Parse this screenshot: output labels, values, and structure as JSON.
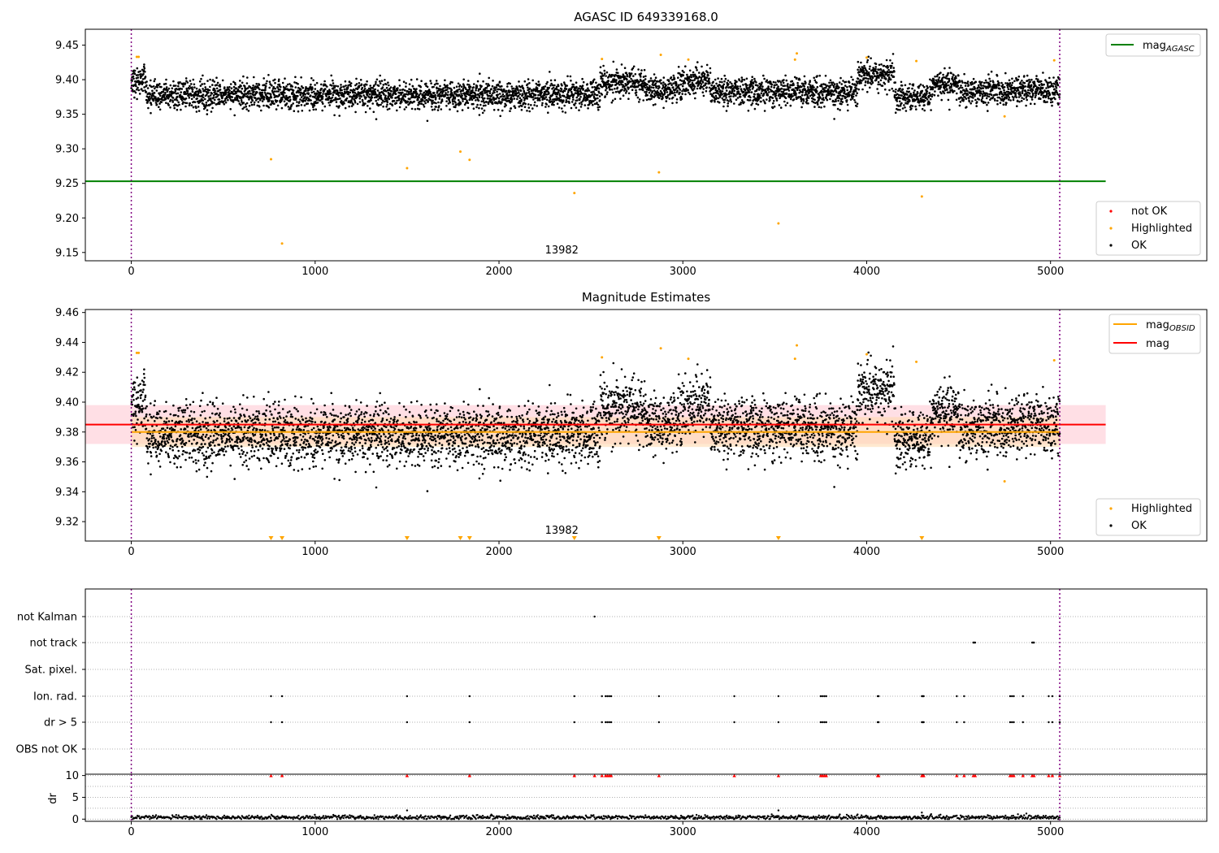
{
  "figure": {
    "title_top": "AGASC ID 649339168.0",
    "title_mid": "Magnitude Estimates",
    "obsid_label": "13982",
    "colors": {
      "ok": "#000000",
      "highlighted": "#ffa500",
      "not_ok": "#ff0000",
      "mag_agasc": "#008000",
      "mag_obsid": "#ffa500",
      "mag": "#ff0000",
      "obs_boundary": "#800080",
      "band_mag": "#ffc0cb",
      "band_obsid": "#ffdab0"
    }
  },
  "chart_data": [
    {
      "id": "top",
      "type": "scatter",
      "title": "AGASC ID 649339168.0",
      "xlim": [
        -250,
        5850
      ],
      "ylim": [
        9.138,
        9.473
      ],
      "xticks": [
        0,
        1000,
        2000,
        3000,
        4000,
        5000
      ],
      "yticks": [
        9.15,
        9.2,
        9.25,
        9.3,
        9.35,
        9.4,
        9.45
      ],
      "ytick_labels": [
        "9.15",
        "9.20",
        "9.25",
        "9.30",
        "9.35",
        "9.40",
        "9.45"
      ],
      "mag_agasc": 9.253,
      "mag_agasc_xrange": [
        -250,
        5300
      ],
      "obs_boundaries": [
        0,
        5050
      ],
      "obsid_label_x": 2250,
      "legend_lines": [
        {
          "label": "mag",
          "sub": "AGASC",
          "color": "#008000"
        }
      ],
      "legend_points": [
        {
          "label": "not OK",
          "color": "#ff0000"
        },
        {
          "label": "Highlighted",
          "color": "#ffa500"
        },
        {
          "label": "OK",
          "color": "#000000"
        }
      ],
      "series": [
        {
          "name": "OK",
          "color": "#000000",
          "n_points": 5050,
          "x_range": [
            0,
            5050
          ],
          "baseline": 9.38,
          "scatter": 0.01,
          "segments": [
            {
              "x": [
                0,
                80
              ],
              "level": 9.397
            },
            {
              "x": [
                80,
                2550
              ],
              "level": 9.378
            },
            {
              "x": [
                2550,
                2800
              ],
              "level": 9.396
            },
            {
              "x": [
                2800,
                3000
              ],
              "level": 9.386
            },
            {
              "x": [
                3000,
                3150
              ],
              "level": 9.398
            },
            {
              "x": [
                3150,
                3700
              ],
              "level": 9.383
            },
            {
              "x": [
                3700,
                3950
              ],
              "level": 9.381
            },
            {
              "x": [
                3950,
                4150
              ],
              "level": 9.408
            },
            {
              "x": [
                4150,
                4350
              ],
              "level": 9.375
            },
            {
              "x": [
                4350,
                4500
              ],
              "level": 9.395
            },
            {
              "x": [
                4500,
                4700
              ],
              "level": 9.383
            },
            {
              "x": [
                4700,
                5050
              ],
              "level": 9.385
            }
          ]
        },
        {
          "name": "Highlighted",
          "color": "#ffa500",
          "points": [
            [
              30,
              9.433
            ],
            [
              40,
              9.433
            ],
            [
              760,
              9.285
            ],
            [
              820,
              9.163
            ],
            [
              1500,
              9.272
            ],
            [
              1790,
              9.296
            ],
            [
              1840,
              9.284
            ],
            [
              2410,
              9.236
            ],
            [
              2560,
              9.43
            ],
            [
              2870,
              9.266
            ],
            [
              2880,
              9.436
            ],
            [
              3030,
              9.429
            ],
            [
              3520,
              9.192
            ],
            [
              3610,
              9.429
            ],
            [
              3620,
              9.438
            ],
            [
              4000,
              9.432
            ],
            [
              4270,
              9.427
            ],
            [
              4300,
              9.231
            ],
            [
              4750,
              9.347
            ],
            [
              5020,
              9.428
            ]
          ]
        }
      ]
    },
    {
      "id": "mid",
      "type": "scatter",
      "title": "Magnitude Estimates",
      "xlim": [
        -250,
        5850
      ],
      "ylim": [
        9.307,
        9.462
      ],
      "xticks": [
        0,
        1000,
        2000,
        3000,
        4000,
        5000
      ],
      "yticks": [
        9.32,
        9.34,
        9.36,
        9.38,
        9.4,
        9.42,
        9.44,
        9.46
      ],
      "ytick_labels": [
        "9.32",
        "9.34",
        "9.36",
        "9.38",
        "9.40",
        "9.42",
        "9.44",
        "9.46"
      ],
      "mag": 9.385,
      "mag_band": [
        9.372,
        9.398
      ],
      "mag_xrange": [
        -250,
        5300
      ],
      "mag_obsid": 9.38,
      "mag_obsid_band": [
        9.37,
        9.39
      ],
      "mag_obsid_xrange": [
        0,
        5050
      ],
      "obs_boundaries": [
        0,
        5050
      ],
      "obsid_label_x": 2250,
      "offscale_markers_x": [
        760,
        820,
        1500,
        1790,
        1840,
        2410,
        2870,
        3520,
        4300
      ],
      "legend_lines": [
        {
          "label": "mag",
          "sub": "OBSID",
          "color": "#ffa500"
        },
        {
          "label": "mag",
          "sub": "",
          "color": "#ff0000"
        }
      ],
      "legend_points": [
        {
          "label": "Highlighted",
          "color": "#ffa500"
        },
        {
          "label": "OK",
          "color": "#000000"
        }
      ]
    },
    {
      "id": "flags",
      "type": "scatter",
      "xlim": [
        -250,
        5850
      ],
      "obs_boundaries": [
        0,
        5050
      ],
      "rows": [
        "not Kalman",
        "not track",
        "Sat. pixel.",
        "Ion. rad.",
        "dr > 5",
        "OBS not OK"
      ],
      "row_points": {
        "not Kalman": [
          2520
        ],
        "not track": [
          4580,
          4585,
          4590,
          4900,
          4905,
          4910
        ],
        "Sat. pixel.": [],
        "Ion. rad.": [
          760,
          820,
          1500,
          1840,
          2410,
          2560,
          2580,
          2590,
          2600,
          2610,
          2870,
          3280,
          3520,
          3750,
          3760,
          3770,
          3780,
          4060,
          4065,
          4300,
          4305,
          4310,
          4490,
          4530,
          4780,
          4790,
          4800,
          4850,
          4990,
          5010,
          5050
        ],
        "dr > 5": [
          760,
          820,
          1500,
          1840,
          2410,
          2560,
          2580,
          2590,
          2600,
          2610,
          2870,
          3280,
          3520,
          3750,
          3760,
          3770,
          3780,
          4060,
          4065,
          4300,
          4305,
          4310,
          4490,
          4530,
          4780,
          4790,
          4800,
          4850,
          4990,
          5010,
          5050
        ],
        "OBS not OK": []
      }
    },
    {
      "id": "dr",
      "type": "scatter",
      "ylabel": "dr",
      "xlim": [
        -250,
        5850
      ],
      "ylim": [
        -0.5,
        10.3
      ],
      "yticks": [
        0,
        5,
        10
      ],
      "xticks": [
        0,
        1000,
        2000,
        3000,
        4000,
        5000
      ],
      "obs_boundaries": [
        0,
        5050
      ],
      "dr_baseline": 0.4,
      "outliers": [
        [
          1500,
          2.0
        ],
        [
          3520,
          2.0
        ],
        [
          4300,
          1.5
        ]
      ],
      "clipped_markers_x": [
        760,
        820,
        1500,
        1840,
        2410,
        2520,
        2560,
        2580,
        2590,
        2600,
        2610,
        2870,
        3280,
        3520,
        3750,
        3760,
        3770,
        3780,
        4060,
        4065,
        4300,
        4305,
        4310,
        4490,
        4530,
        4580,
        4590,
        4780,
        4790,
        4800,
        4850,
        4900,
        4910,
        4990,
        5010,
        5050
      ]
    }
  ]
}
